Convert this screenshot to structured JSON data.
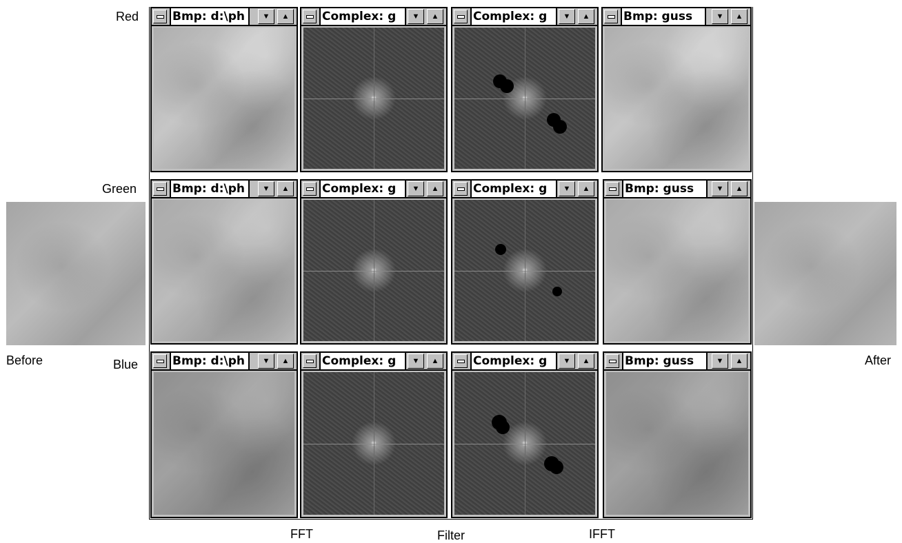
{
  "row_labels": {
    "red": "Red",
    "green": "Green",
    "blue": "Blue"
  },
  "side_labels": {
    "before": "Before",
    "after": "After"
  },
  "column_labels": {
    "fft": "FFT",
    "filter": "Filter",
    "ifft": "IFFT"
  },
  "window_titles": {
    "bmp_source": "Bmp: d:\\ph",
    "complex_fft": "Complex: g",
    "complex_filter": "Complex: g",
    "bmp_result": "Bmp: guss"
  },
  "buttons": {
    "system_menu": "system-menu-icon",
    "minimize": "▼",
    "maximize": "▲"
  }
}
